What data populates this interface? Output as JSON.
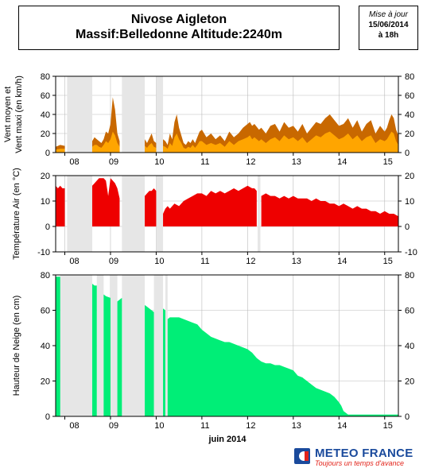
{
  "header": {
    "title_line1": "Nivose Aigleton",
    "title_line2": "Massif:Belledonne Altitude:2240m",
    "update_label": "Mise à jour",
    "update_date": "15/06/2014",
    "update_time": "à 18h"
  },
  "logo": {
    "name": "METEO FRANCE",
    "slogan": "Toujours un temps d'avance"
  },
  "x_axis": {
    "title": "juin 2014",
    "day_labels": [
      "08",
      "09",
      "10",
      "11",
      "12",
      "13",
      "14",
      "15"
    ]
  },
  "colors": {
    "wind_max": "#c86800",
    "wind_mean": "#ffa500",
    "temperature": "#ee0000",
    "snow": "#00ee77",
    "gap": "#e6e6e6"
  },
  "chart_data": [
    {
      "type": "area",
      "ylabel": "Vent moyen et\nVent maxi (en km/h)",
      "ylabel_line1": "Vent moyen et",
      "ylabel_line2": "Vent maxi (en km/h)",
      "ylim": [
        0,
        80
      ],
      "yticks": [
        0,
        20,
        40,
        60,
        80
      ],
      "x_range": [
        7.8,
        15.3
      ],
      "missing_periods": [
        [
          8.05,
          8.6
        ],
        [
          9.25,
          9.75
        ],
        [
          10.0,
          10.15
        ]
      ],
      "series": [
        {
          "name_key": "max",
          "x": [
            7.8,
            7.9,
            8.0,
            8.6,
            8.65,
            8.7,
            8.75,
            8.8,
            8.85,
            8.9,
            8.95,
            9.0,
            9.05,
            9.1,
            9.15,
            9.2,
            9.75,
            9.8,
            9.85,
            9.9,
            9.95,
            10.0,
            10.15,
            10.2,
            10.25,
            10.3,
            10.35,
            10.4,
            10.45,
            10.5,
            10.55,
            10.6,
            10.65,
            10.7,
            10.75,
            10.8,
            10.85,
            10.9,
            10.95,
            11.0,
            11.1,
            11.2,
            11.3,
            11.4,
            11.5,
            11.6,
            11.7,
            11.8,
            11.9,
            12.0,
            12.05,
            12.1,
            12.15,
            12.25,
            12.3,
            12.4,
            12.5,
            12.6,
            12.7,
            12.8,
            12.9,
            13.0,
            13.1,
            13.2,
            13.3,
            13.4,
            13.5,
            13.6,
            13.7,
            13.8,
            13.9,
            14.0,
            14.1,
            14.2,
            14.3,
            14.4,
            14.5,
            14.6,
            14.7,
            14.8,
            14.9,
            15.0,
            15.05,
            15.1,
            15.15,
            15.2,
            15.25,
            15.3
          ],
          "values": [
            6,
            8,
            7,
            12,
            16,
            14,
            12,
            10,
            14,
            22,
            20,
            30,
            58,
            45,
            20,
            12,
            14,
            10,
            15,
            20,
            12,
            10,
            14,
            12,
            8,
            20,
            14,
            32,
            40,
            26,
            18,
            10,
            8,
            12,
            10,
            14,
            10,
            16,
            22,
            24,
            16,
            20,
            14,
            18,
            12,
            22,
            16,
            20,
            26,
            30,
            32,
            28,
            30,
            24,
            26,
            20,
            28,
            30,
            22,
            32,
            26,
            28,
            22,
            30,
            20,
            26,
            32,
            30,
            36,
            40,
            34,
            28,
            30,
            36,
            26,
            34,
            22,
            30,
            34,
            20,
            28,
            22,
            26,
            34,
            40,
            36,
            24,
            18
          ]
        },
        {
          "name_key": "mean",
          "x": [
            7.8,
            7.9,
            8.0,
            8.6,
            8.65,
            8.7,
            8.75,
            8.8,
            8.85,
            8.9,
            8.95,
            9.0,
            9.05,
            9.1,
            9.15,
            9.2,
            9.75,
            9.8,
            9.85,
            9.9,
            9.95,
            10.0,
            10.15,
            10.2,
            10.25,
            10.3,
            10.35,
            10.4,
            10.45,
            10.5,
            10.55,
            10.6,
            10.65,
            10.7,
            10.75,
            10.8,
            10.85,
            10.9,
            10.95,
            11.0,
            11.1,
            11.2,
            11.3,
            11.4,
            11.5,
            11.6,
            11.7,
            11.8,
            11.9,
            12.0,
            12.05,
            12.1,
            12.15,
            12.25,
            12.3,
            12.4,
            12.5,
            12.6,
            12.7,
            12.8,
            12.9,
            13.0,
            13.1,
            13.2,
            13.3,
            13.4,
            13.5,
            13.6,
            13.7,
            13.8,
            13.9,
            14.0,
            14.1,
            14.2,
            14.3,
            14.4,
            14.5,
            14.6,
            14.7,
            14.8,
            14.9,
            15.0,
            15.05,
            15.1,
            15.15,
            15.2,
            15.25,
            15.3
          ],
          "values": [
            3,
            4,
            4,
            6,
            8,
            8,
            6,
            5,
            8,
            12,
            10,
            14,
            22,
            18,
            10,
            6,
            7,
            5,
            8,
            10,
            6,
            5,
            7,
            6,
            4,
            10,
            7,
            16,
            20,
            14,
            10,
            5,
            4,
            6,
            5,
            8,
            5,
            8,
            12,
            12,
            8,
            10,
            8,
            10,
            6,
            12,
            8,
            12,
            14,
            16,
            18,
            14,
            16,
            12,
            14,
            10,
            14,
            16,
            12,
            18,
            14,
            16,
            12,
            16,
            10,
            14,
            18,
            16,
            20,
            22,
            18,
            14,
            16,
            20,
            14,
            18,
            12,
            16,
            18,
            10,
            14,
            12,
            14,
            18,
            22,
            20,
            12,
            8
          ]
        }
      ]
    },
    {
      "type": "area",
      "ylabel": "Température Air (en °C)",
      "ylim": [
        -10,
        20
      ],
      "yticks": [
        -10,
        0,
        10,
        20
      ],
      "x_range": [
        7.8,
        15.3
      ],
      "missing_periods": [
        [
          8.05,
          8.6
        ],
        [
          9.25,
          9.75
        ],
        [
          10.0,
          10.15
        ],
        [
          12.22,
          12.28
        ]
      ],
      "series": [
        {
          "name_key": "temperature",
          "x": [
            7.8,
            7.85,
            7.9,
            7.95,
            8.0,
            8.6,
            8.65,
            8.7,
            8.75,
            8.8,
            8.85,
            8.9,
            8.95,
            9.0,
            9.05,
            9.1,
            9.15,
            9.2,
            9.75,
            9.8,
            9.85,
            9.9,
            9.95,
            10.0,
            10.15,
            10.2,
            10.25,
            10.3,
            10.4,
            10.5,
            10.6,
            10.7,
            10.8,
            10.9,
            11.0,
            11.1,
            11.2,
            11.3,
            11.4,
            11.5,
            11.6,
            11.7,
            11.8,
            11.9,
            12.0,
            12.1,
            12.15,
            12.2,
            12.3,
            12.4,
            12.5,
            12.6,
            12.7,
            12.8,
            12.9,
            13.0,
            13.1,
            13.2,
            13.3,
            13.4,
            13.5,
            13.6,
            13.7,
            13.8,
            13.9,
            14.0,
            14.1,
            14.2,
            14.3,
            14.4,
            14.5,
            14.6,
            14.7,
            14.8,
            14.9,
            15.0,
            15.1,
            15.2,
            15.3
          ],
          "values": [
            16,
            15,
            16,
            15,
            15,
            16,
            17,
            18,
            19,
            19,
            19,
            18,
            12,
            19,
            18,
            17,
            15,
            11,
            12,
            13,
            14,
            14,
            15,
            14,
            5,
            7,
            8,
            7,
            9,
            8,
            10,
            11,
            12,
            13,
            13,
            12,
            14,
            13,
            14,
            13,
            14,
            15,
            14,
            15,
            16,
            15,
            15,
            14,
            12,
            13,
            12,
            12,
            11,
            12,
            11,
            12,
            11,
            11,
            11,
            10,
            11,
            10,
            10,
            9,
            9,
            8,
            9,
            8,
            7,
            8,
            7,
            7,
            6,
            6,
            5,
            6,
            5,
            5,
            4
          ]
        }
      ]
    },
    {
      "type": "area",
      "ylabel": "Hauteur de Neige (en cm)",
      "ylim": [
        0,
        80
      ],
      "yticks": [
        0,
        20,
        40,
        60,
        80
      ],
      "x_range": [
        7.8,
        15.3
      ],
      "missing_periods": [
        [
          7.9,
          8.6
        ],
        [
          8.7,
          8.85
        ],
        [
          9.0,
          9.15
        ],
        [
          9.25,
          9.75
        ],
        [
          9.95,
          10.15
        ],
        [
          10.2,
          10.25
        ]
      ],
      "series": [
        {
          "name_key": "snow",
          "x": [
            7.8,
            7.9,
            8.6,
            8.65,
            8.7,
            8.85,
            8.9,
            9.0,
            9.15,
            9.2,
            9.25,
            9.75,
            9.8,
            9.85,
            9.9,
            9.95,
            10.15,
            10.2,
            10.25,
            10.3,
            10.5,
            10.6,
            10.7,
            10.8,
            10.9,
            11.0,
            11.1,
            11.2,
            11.3,
            11.4,
            11.5,
            11.6,
            11.7,
            11.8,
            11.9,
            12.0,
            12.1,
            12.2,
            12.3,
            12.4,
            12.5,
            12.6,
            12.7,
            12.8,
            12.9,
            13.0,
            13.1,
            13.2,
            13.3,
            13.4,
            13.5,
            13.6,
            13.7,
            13.8,
            13.9,
            14.0,
            14.05,
            14.1,
            14.2,
            14.3,
            14.5,
            14.7,
            15.0,
            15.3
          ],
          "values": [
            79,
            79,
            75,
            74,
            74,
            69,
            68,
            67,
            65,
            66,
            67,
            63,
            62,
            61,
            60,
            59,
            61,
            60,
            55,
            56,
            56,
            55,
            54,
            53,
            52,
            49,
            47,
            45,
            44,
            43,
            42,
            42,
            41,
            40,
            39,
            38,
            36,
            33,
            31,
            30,
            30,
            29,
            29,
            28,
            27,
            26,
            23,
            22,
            20,
            18,
            16,
            15,
            14,
            13,
            11,
            8,
            6,
            3,
            1,
            1,
            1,
            1,
            1,
            1
          ]
        }
      ]
    }
  ]
}
